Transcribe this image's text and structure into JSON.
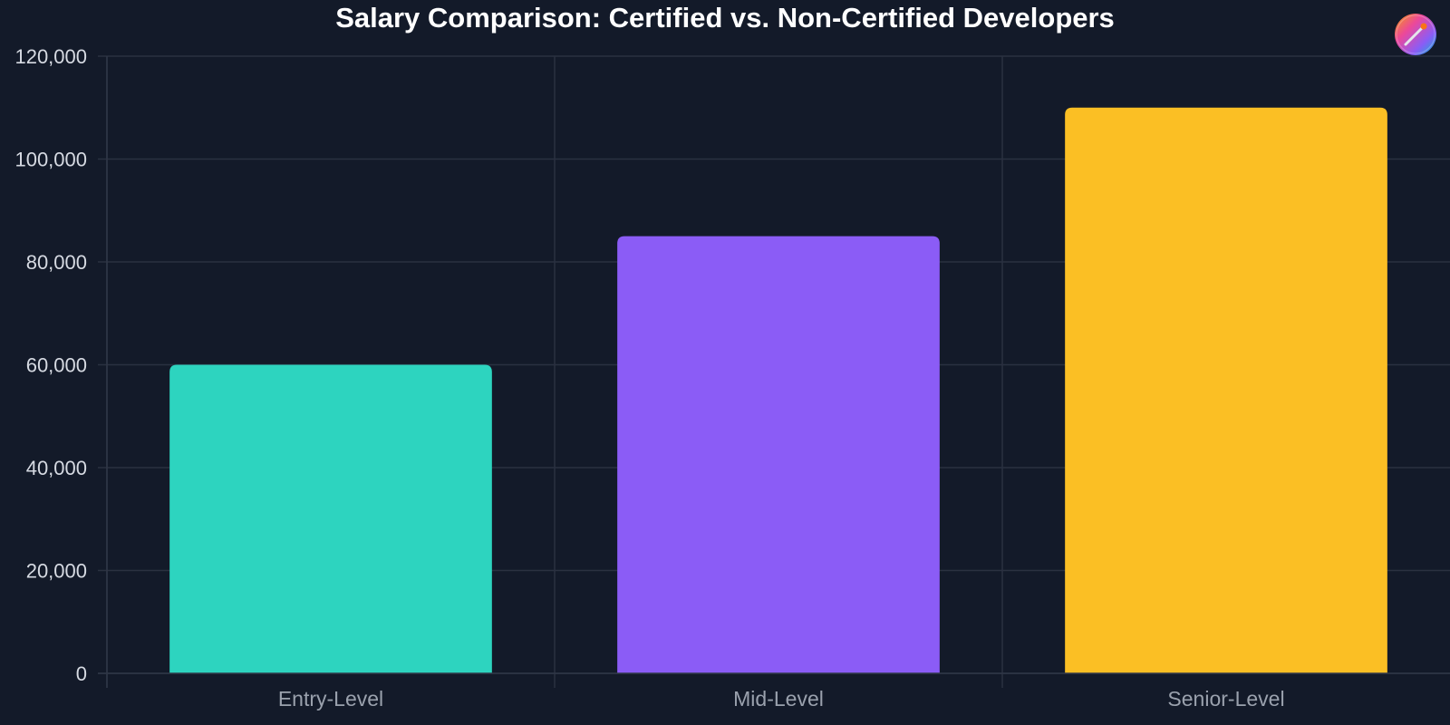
{
  "chart_data": {
    "type": "bar",
    "title": "Salary Comparison: Certified vs. Non-Certified Developers",
    "categories": [
      "Entry-Level",
      "Mid-Level",
      "Senior-Level"
    ],
    "values": [
      60000,
      85000,
      110000
    ],
    "colors": [
      "#2dd4bf",
      "#8b5cf6",
      "#fbbf24"
    ],
    "ylim": [
      0,
      120000
    ],
    "yticks": [
      0,
      20000,
      40000,
      60000,
      80000,
      100000,
      120000
    ],
    "ytick_labels": [
      "0",
      "20,000",
      "40,000",
      "60,000",
      "80,000",
      "100,000",
      "120,000"
    ],
    "grid": true,
    "xlabel": "",
    "ylabel": ""
  },
  "logo": {
    "icon": "paint-palette-icon"
  }
}
